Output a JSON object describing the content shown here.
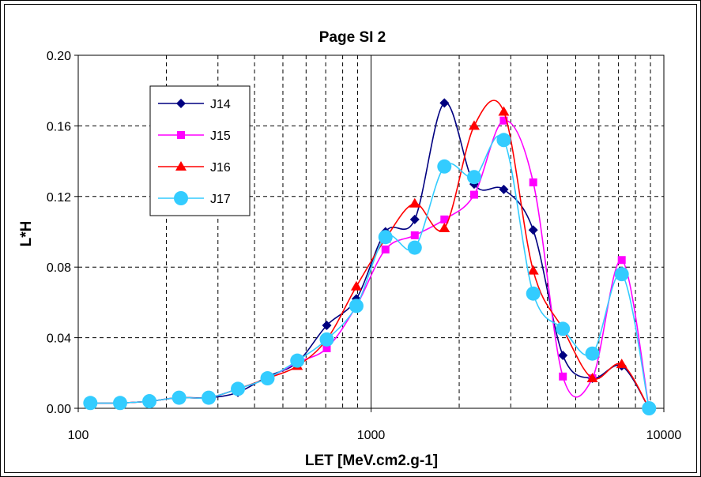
{
  "chart_data": {
    "type": "line",
    "title": "Page SI 2",
    "xlabel": "LET [MeV.cm2.g-1]",
    "ylabel": "L*H",
    "xscale": "log",
    "xlim": [
      100,
      10000
    ],
    "ylim": [
      0,
      0.2
    ],
    "xticks": [
      "100",
      "1000",
      "10000"
    ],
    "yticks": [
      "0.00",
      "0.04",
      "0.08",
      "0.12",
      "0.16",
      "0.20"
    ],
    "grid": true,
    "legend_position": "top-left",
    "x": [
      110,
      139,
      175,
      221,
      279,
      351,
      443,
      560,
      706,
      891,
      1120,
      1410,
      1780,
      2250,
      2840,
      3580,
      4520,
      5700,
      7180,
      8900
    ],
    "series": [
      {
        "name": "J14",
        "color": "#000080",
        "marker": "diamond",
        "values": [
          0.003,
          0.003,
          0.004,
          0.006,
          0.006,
          0.009,
          0.018,
          0.026,
          0.047,
          0.062,
          0.1,
          0.107,
          0.173,
          0.127,
          0.124,
          0.101,
          0.03,
          0.017,
          0.024,
          0.0
        ]
      },
      {
        "name": "J15",
        "color": "#ff00ff",
        "marker": "square",
        "values": [
          0.003,
          0.003,
          0.004,
          0.006,
          0.006,
          0.011,
          0.017,
          0.026,
          0.034,
          0.058,
          0.09,
          0.098,
          0.107,
          0.121,
          0.163,
          0.128,
          0.018,
          0.017,
          0.084,
          0.0
        ]
      },
      {
        "name": "J16",
        "color": "#ff0000",
        "marker": "triangle",
        "values": [
          0.003,
          0.003,
          0.004,
          0.006,
          0.006,
          0.011,
          0.017,
          0.024,
          0.039,
          0.069,
          0.096,
          0.116,
          0.102,
          0.16,
          0.168,
          0.078,
          0.045,
          0.017,
          0.025,
          0.0
        ]
      },
      {
        "name": "J17",
        "color": "#33ccff",
        "marker": "circle",
        "values": [
          0.003,
          0.003,
          0.004,
          0.006,
          0.006,
          0.011,
          0.017,
          0.027,
          0.039,
          0.058,
          0.097,
          0.091,
          0.137,
          0.131,
          0.152,
          0.065,
          0.045,
          0.031,
          0.076,
          0.0
        ]
      }
    ]
  }
}
